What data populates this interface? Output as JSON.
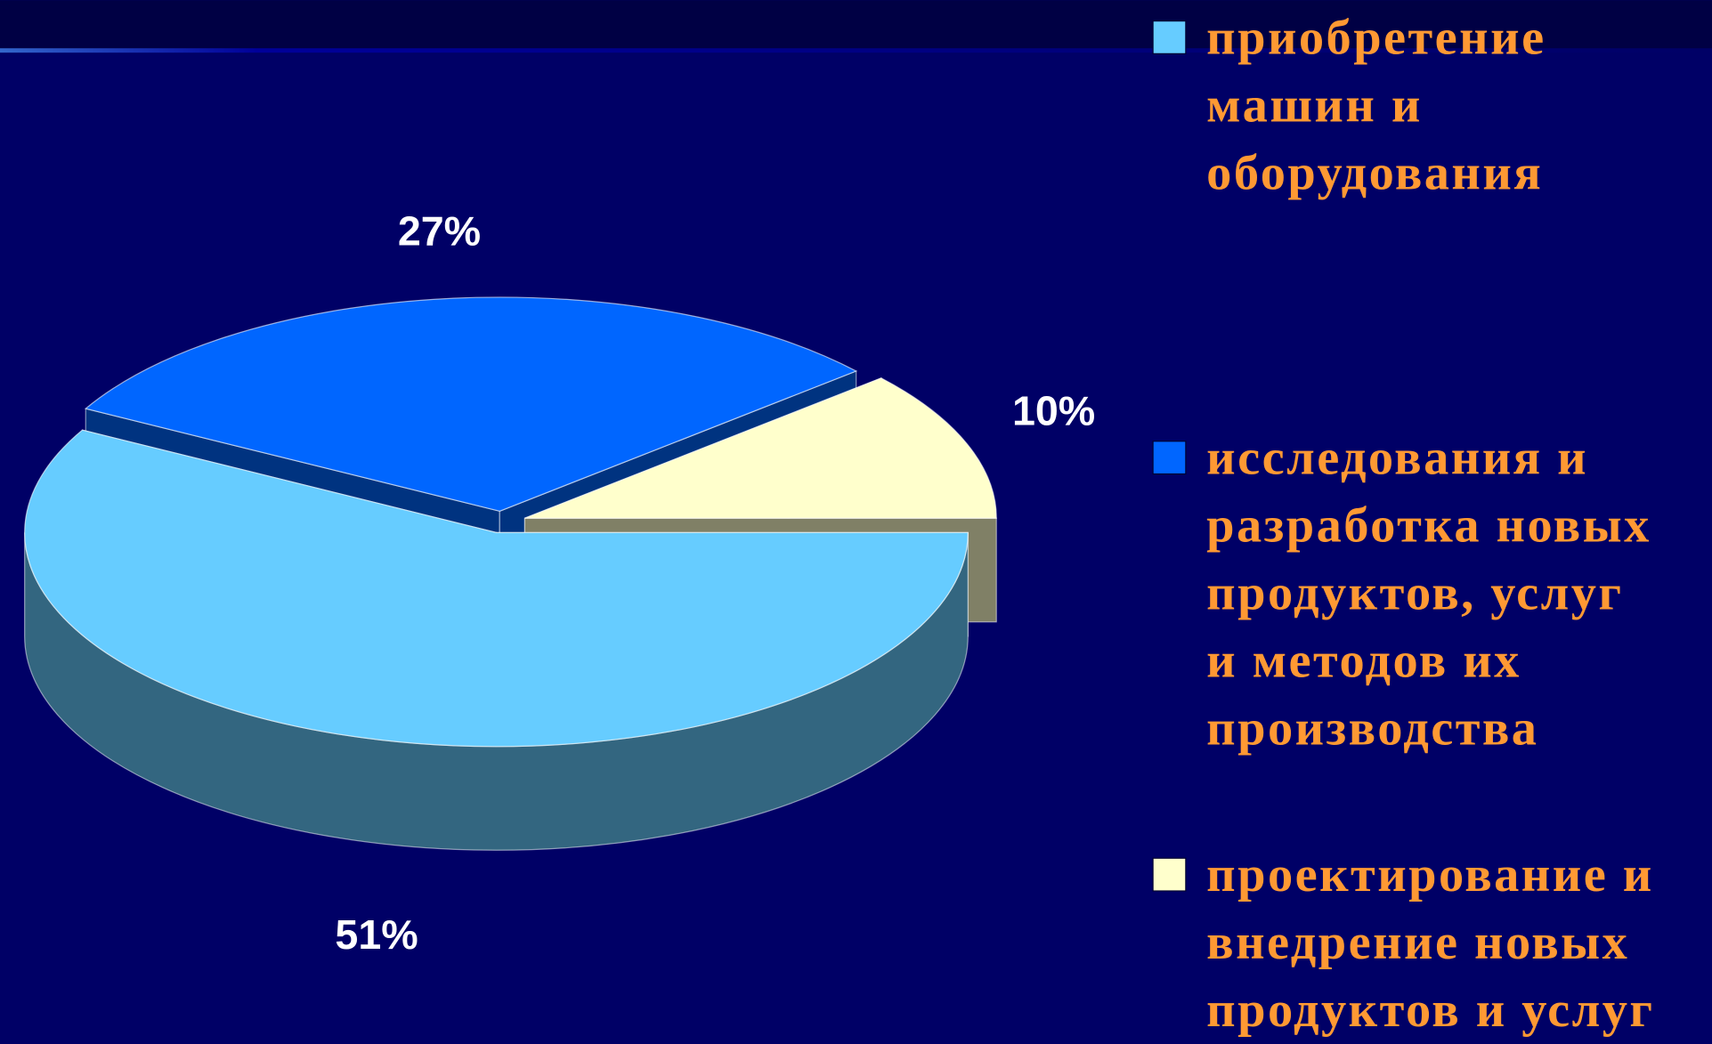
{
  "chart_data": {
    "type": "pie3d",
    "series": [
      {
        "name": "приобретение\nмашин и\nоборудования",
        "color": "#66ccff",
        "values": [
          51
        ],
        "value_labels": [
          "51%"
        ]
      },
      {
        "name": "исследования и\nразработка новых\nпродуктов, услуг\nи методов их\nпроизводства",
        "color": "#0066ff",
        "values": [
          27
        ],
        "value_labels": [
          "27%"
        ]
      },
      {
        "name": "проектирование и\nвнедрение новых\nпродуктов и услуг",
        "color": "#ffffcc",
        "values": [
          10
        ],
        "value_labels": [
          "10%"
        ]
      }
    ],
    "legend": "right"
  }
}
